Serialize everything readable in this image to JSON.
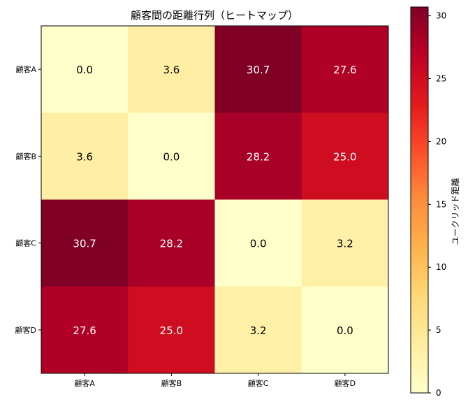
{
  "chart_data": {
    "type": "heatmap",
    "title": "顧客間の距離行列（ヒートマップ）",
    "x_categories": [
      "顧客A",
      "顧客B",
      "顧客C",
      "顧客D"
    ],
    "y_categories": [
      "顧客A",
      "顧客B",
      "顧客C",
      "顧客D"
    ],
    "values": [
      [
        0.0,
        3.6,
        30.7,
        27.6
      ],
      [
        3.6,
        0.0,
        28.2,
        25.0
      ],
      [
        30.7,
        28.2,
        0.0,
        3.2
      ],
      [
        27.6,
        25.0,
        3.2,
        0.0
      ]
    ],
    "value_format": "0.0",
    "colormap": "YlOrRd",
    "colorbar": {
      "label": "ユークリッド距離",
      "range": [
        0,
        30.7
      ],
      "ticks": [
        0,
        5,
        10,
        15,
        20,
        25,
        30
      ]
    },
    "grid": false
  }
}
